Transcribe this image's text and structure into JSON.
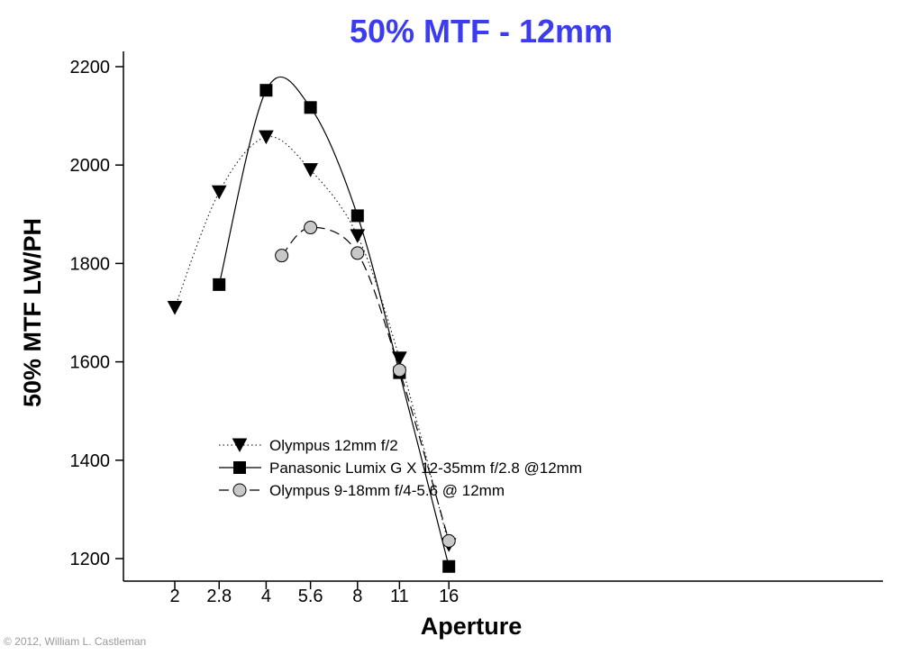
{
  "copyright": "© 2012, William L. Castleman",
  "colors": {
    "title": "#3b3bf0",
    "axis": "#000000",
    "marker_fill_gray": "#c8c8c8"
  },
  "chart_data": {
    "type": "line",
    "title": "50% MTF - 12mm",
    "xlabel": "Aperture",
    "ylabel": "50% MTF LW/PH",
    "x_ticks": [
      {
        "value": 2,
        "label": "2"
      },
      {
        "value": 2.8,
        "label": "2.8"
      },
      {
        "value": 4,
        "label": "4"
      },
      {
        "value": 5.6,
        "label": "5.6"
      },
      {
        "value": 8,
        "label": "8"
      },
      {
        "value": 11,
        "label": "11"
      },
      {
        "value": 16,
        "label": "16"
      }
    ],
    "y_ticks": [
      1200,
      1400,
      1600,
      1800,
      2000,
      2200
    ],
    "ylim": [
      1150,
      2240
    ],
    "grid": false,
    "legend_position": "lower-left",
    "series": [
      {
        "name": "Olympus 12mm f/2",
        "marker": "triangle-down",
        "line_style": "dotted",
        "points": [
          {
            "x": 2,
            "y": 1710
          },
          {
            "x": 2.8,
            "y": 1945
          },
          {
            "x": 4,
            "y": 2057
          },
          {
            "x": 5.6,
            "y": 1990
          },
          {
            "x": 8,
            "y": 1856
          },
          {
            "x": 11,
            "y": 1607
          },
          {
            "x": 16,
            "y": 1228
          }
        ]
      },
      {
        "name": "Panasonic Lumix G X 12-35mm f/2.8 @12mm",
        "marker": "square",
        "line_style": "solid",
        "points": [
          {
            "x": 2.8,
            "y": 1757
          },
          {
            "x": 4,
            "y": 2152
          },
          {
            "x": 5.6,
            "y": 2117
          },
          {
            "x": 8,
            "y": 1897
          },
          {
            "x": 11,
            "y": 1578
          },
          {
            "x": 16,
            "y": 1184
          }
        ]
      },
      {
        "name": "Olympus 9-18mm f/4-5.6 @ 12mm",
        "marker": "circle",
        "line_style": "dashed",
        "points": [
          {
            "x": 4.5,
            "y": 1816
          },
          {
            "x": 5.6,
            "y": 1873
          },
          {
            "x": 8,
            "y": 1821
          },
          {
            "x": 11,
            "y": 1583
          },
          {
            "x": 16,
            "y": 1236
          }
        ]
      }
    ]
  }
}
